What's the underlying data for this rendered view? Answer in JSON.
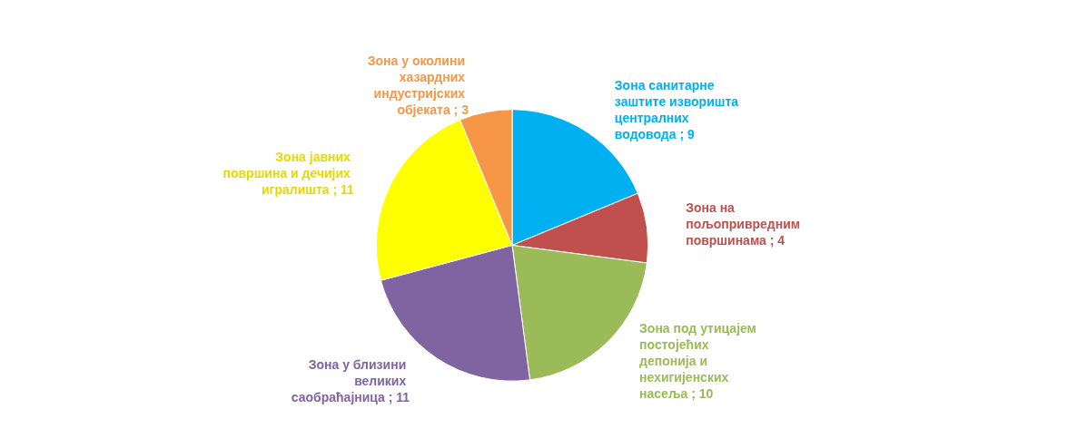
{
  "chart_data": {
    "type": "pie",
    "categories": [
      "Зона санитарне заштите изворишта централних водовода",
      "Зона на пољопривредним површинама",
      "Зона под утицајем постојећих депонија и нехигијенских насеља",
      "Зона у близини великих саобраћајница",
      "Зона јавних површина и дечијих игралишта",
      "Зона у околини хазардних индустријских објеката"
    ],
    "values": [
      9,
      4,
      10,
      11,
      11,
      3
    ],
    "colors": [
      "#00b0f0",
      "#c0504d",
      "#9bbb59",
      "#8064a2",
      "#ffff00",
      "#f79646"
    ],
    "value_labels": [
      "; 9",
      "; 4",
      "; 10",
      "; 11",
      "; 11",
      "; 3"
    ],
    "legend": false
  }
}
